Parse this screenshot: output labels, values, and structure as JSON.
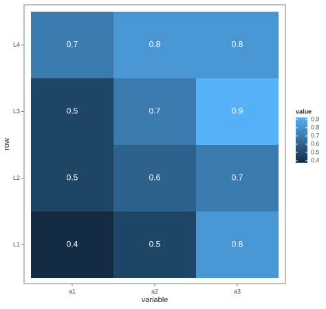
{
  "chart_data": {
    "type": "heatmap",
    "xlabel": "variable",
    "ylabel": "row",
    "x_categories": [
      "a1",
      "a2",
      "a3"
    ],
    "y_categories": [
      "L1",
      "L2",
      "L3",
      "L4"
    ],
    "values": [
      [
        0.4,
        0.5,
        0.8
      ],
      [
        0.5,
        0.6,
        0.7
      ],
      [
        0.5,
        0.7,
        0.9
      ],
      [
        0.7,
        0.8,
        0.8
      ]
    ],
    "legend_title": "value",
    "colorlim": [
      0.4,
      0.9
    ],
    "colorticks": [
      0.4,
      0.5,
      0.6,
      0.7,
      0.8,
      0.9
    ],
    "color_low": "#132B43",
    "color_high": "#56B1F7"
  }
}
